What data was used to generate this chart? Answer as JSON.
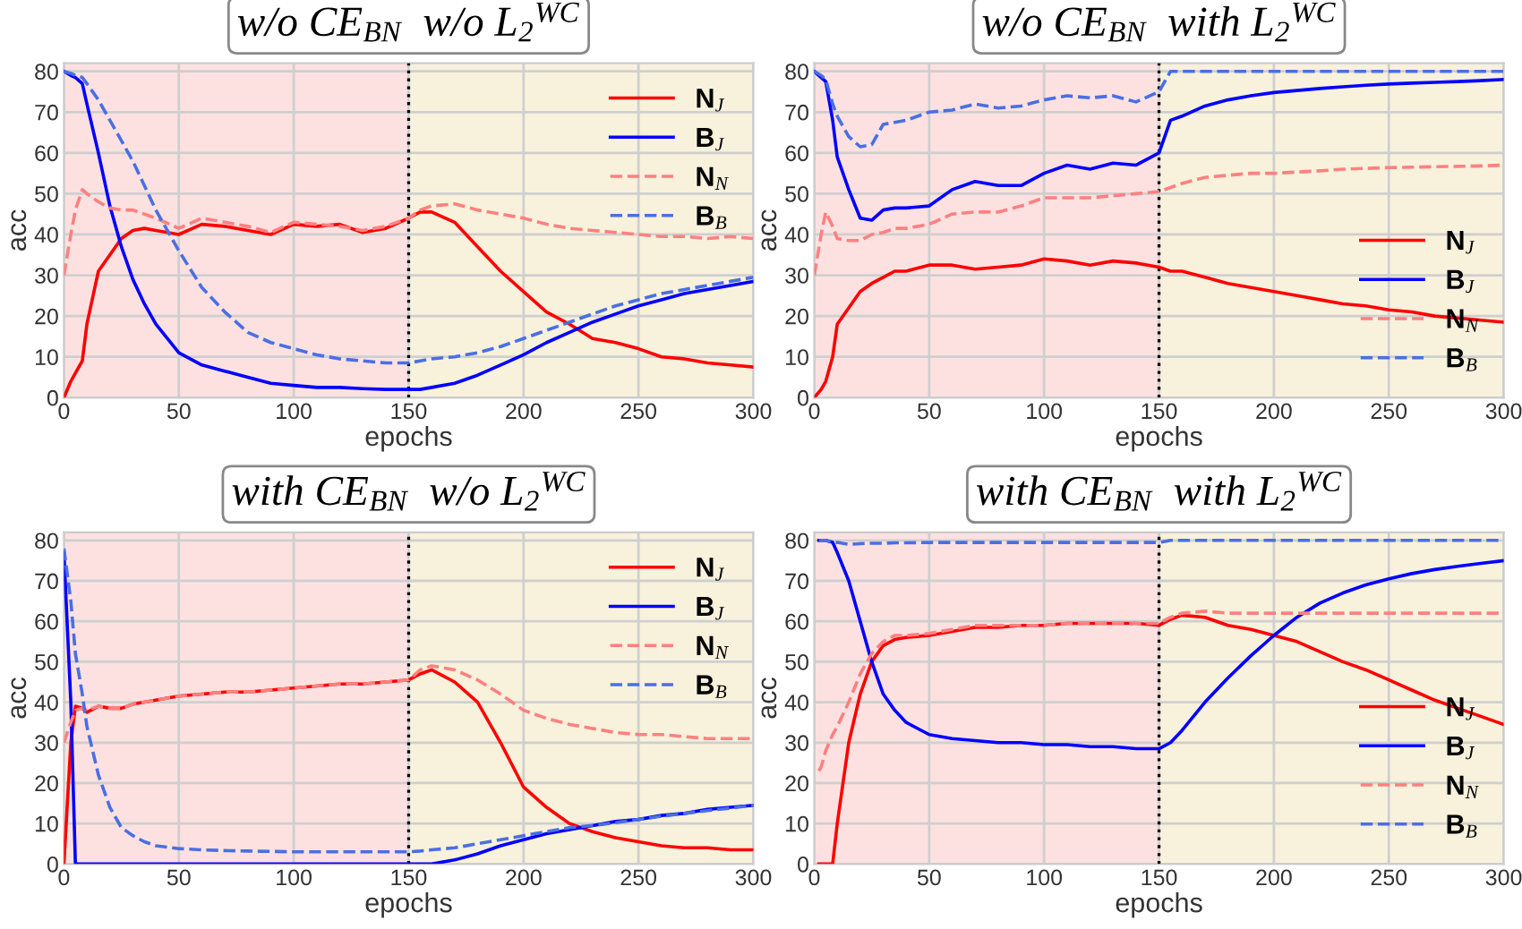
{
  "chart_data": [
    {
      "type": "line",
      "title": "w/o CE$_{BN}$  w/o L$_{2}$$^{WC}$",
      "xlabel": "epochs",
      "ylabel": "acc",
      "xlim": [
        0,
        300
      ],
      "ylim": [
        0,
        82
      ],
      "xticks": [
        0,
        50,
        100,
        150,
        200,
        250,
        300
      ],
      "yticks": [
        0,
        10,
        20,
        30,
        40,
        50,
        60,
        70,
        80
      ],
      "grid": true,
      "legend": "top right",
      "x": [
        0,
        3,
        5,
        8,
        10,
        15,
        20,
        25,
        30,
        35,
        40,
        50,
        60,
        70,
        80,
        90,
        100,
        110,
        120,
        130,
        140,
        150,
        155,
        160,
        170,
        180,
        190,
        200,
        210,
        220,
        230,
        240,
        250,
        260,
        270,
        280,
        290,
        300
      ],
      "bands": [
        {
          "axis": "x",
          "from": 0,
          "to": 150,
          "color": "#fde1e1"
        },
        {
          "axis": "x",
          "from": 150,
          "to": 300,
          "color": "#f8f1dc"
        }
      ],
      "ref_lines": [
        {
          "axis": "x",
          "value": 150,
          "color": "#000000",
          "line_style": "dotted"
        }
      ],
      "series": [
        {
          "name": "N$_{J}$",
          "color": "#ff0000",
          "line_style": "solid",
          "values": [
            0,
            4,
            6,
            9,
            18,
            31,
            35,
            39,
            41,
            41.5,
            41,
            40,
            42.5,
            42,
            41,
            40,
            42.5,
            42,
            42.5,
            40.5,
            41.5,
            44,
            45.5,
            45.5,
            43,
            37,
            31,
            26,
            21,
            18,
            14.5,
            13.5,
            12,
            10,
            9.5,
            8.5,
            8,
            7.5
          ]
        },
        {
          "name": "B$_{J}$",
          "color": "#0000ff",
          "line_style": "solid",
          "values": [
            80,
            79,
            78.5,
            77,
            72,
            60,
            47,
            37,
            29,
            23,
            18,
            11,
            8,
            6.5,
            5,
            3.5,
            3,
            2.5,
            2.5,
            2.2,
            2,
            2,
            2,
            2.5,
            3.5,
            5.5,
            8,
            10.5,
            13.5,
            16,
            18.5,
            20.5,
            22.5,
            24,
            25.5,
            26.5,
            27.5,
            28.5
          ]
        },
        {
          "name": "N$_{N}$",
          "color": "#ff8080",
          "line_style": "dashed",
          "values": [
            30,
            40,
            46,
            51,
            50,
            48,
            46.5,
            46,
            46,
            45,
            44,
            41.5,
            44,
            43,
            42,
            40.5,
            43,
            42.5,
            42,
            41,
            42,
            44,
            46,
            47,
            47.5,
            46,
            45,
            44,
            42.5,
            41.5,
            41,
            40.5,
            40,
            39.5,
            39.5,
            39,
            39.5,
            39
          ]
        },
        {
          "name": "B$_{B}$",
          "color": "#4a6fe3",
          "line_style": "dashed",
          "values": [
            80,
            79.5,
            79,
            78.5,
            77,
            73,
            68,
            63,
            58,
            52,
            46,
            36,
            27,
            21,
            16,
            13.5,
            12,
            10.5,
            9.5,
            9,
            8.5,
            8.5,
            9,
            9.5,
            10,
            11,
            12.5,
            14.5,
            16.5,
            18.5,
            20.5,
            22.5,
            24,
            25.5,
            26.5,
            27.5,
            28.5,
            29.5
          ]
        }
      ]
    },
    {
      "type": "line",
      "title": "w/o CE$_{BN}$  with L$_{2}$$^{WC}$",
      "xlabel": "epochs",
      "ylabel": "acc",
      "xlim": [
        0,
        300
      ],
      "ylim": [
        0,
        82
      ],
      "xticks": [
        0,
        50,
        100,
        150,
        200,
        250,
        300
      ],
      "yticks": [
        0,
        10,
        20,
        30,
        40,
        50,
        60,
        70,
        80
      ],
      "grid": true,
      "legend": "bottom right",
      "x": [
        0,
        3,
        5,
        8,
        10,
        15,
        20,
        25,
        30,
        35,
        40,
        50,
        60,
        70,
        80,
        90,
        100,
        110,
        120,
        130,
        140,
        150,
        155,
        160,
        170,
        180,
        190,
        200,
        210,
        220,
        230,
        240,
        250,
        260,
        270,
        280,
        290,
        300
      ],
      "bands": [
        {
          "axis": "x",
          "from": 0,
          "to": 150,
          "color": "#fde1e1"
        },
        {
          "axis": "x",
          "from": 150,
          "to": 300,
          "color": "#f8f1dc"
        }
      ],
      "ref_lines": [
        {
          "axis": "x",
          "value": 150,
          "color": "#000000",
          "line_style": "dotted"
        }
      ],
      "series": [
        {
          "name": "N$_{J}$",
          "color": "#ff0000",
          "line_style": "solid",
          "values": [
            0,
            2,
            4,
            10,
            18,
            22,
            26,
            28,
            29.5,
            31,
            31,
            32.5,
            32.5,
            31.5,
            32,
            32.5,
            34,
            33.5,
            32.5,
            33.5,
            33,
            32,
            31,
            31,
            29.5,
            28,
            27,
            26,
            25,
            24,
            23,
            22.5,
            21.5,
            21,
            20,
            19.5,
            19,
            18.5
          ]
        },
        {
          "name": "B$_{J}$",
          "color": "#0000ff",
          "line_style": "solid",
          "values": [
            80,
            78.5,
            77.5,
            68,
            59,
            51,
            44,
            43.5,
            46,
            46.5,
            46.5,
            47,
            51,
            53,
            52,
            52,
            55,
            57,
            56,
            57.5,
            57,
            60,
            68,
            69,
            71.5,
            73,
            74,
            74.8,
            75.3,
            75.8,
            76.2,
            76.6,
            76.9,
            77.1,
            77.3,
            77.5,
            77.7,
            78
          ]
        },
        {
          "name": "N$_{N}$",
          "color": "#ff8080",
          "line_style": "dashed",
          "values": [
            30,
            40,
            45.5,
            42,
            39,
            38.5,
            38.5,
            40,
            40.5,
            41.5,
            41.5,
            42.5,
            45,
            45.5,
            45.5,
            47,
            49,
            49,
            49,
            49.5,
            50,
            50.5,
            51.5,
            52.5,
            54,
            54.5,
            55,
            55,
            55.3,
            55.6,
            56,
            56.2,
            56.4,
            56.5,
            56.6,
            56.7,
            56.8,
            57
          ]
        },
        {
          "name": "B$_{B}$",
          "color": "#4a6fe3",
          "line_style": "dashed",
          "values": [
            80,
            79,
            78,
            72,
            69,
            64,
            61.5,
            62,
            67,
            67.5,
            68,
            70,
            70.5,
            72,
            71,
            71.5,
            73,
            74,
            73.5,
            74,
            72.5,
            75,
            80,
            80,
            80,
            80,
            80,
            80,
            80,
            80,
            80,
            80,
            80,
            80,
            80,
            80,
            80,
            80
          ]
        }
      ]
    },
    {
      "type": "line",
      "title": "with CE$_{BN}$  w/o L$_{2}$$^{WC}$",
      "xlabel": "epochs",
      "ylabel": "acc",
      "xlim": [
        0,
        300
      ],
      "ylim": [
        0,
        82
      ],
      "xticks": [
        0,
        50,
        100,
        150,
        200,
        250,
        300
      ],
      "yticks": [
        0,
        10,
        20,
        30,
        40,
        50,
        60,
        70,
        80
      ],
      "grid": true,
      "legend": "top right",
      "x": [
        0,
        3,
        5,
        8,
        10,
        15,
        20,
        25,
        30,
        35,
        40,
        50,
        60,
        70,
        80,
        90,
        100,
        110,
        120,
        130,
        140,
        150,
        155,
        160,
        170,
        180,
        190,
        200,
        210,
        220,
        230,
        240,
        250,
        260,
        270,
        280,
        290,
        300
      ],
      "bands": [
        {
          "axis": "x",
          "from": 0,
          "to": 150,
          "color": "#fde1e1"
        },
        {
          "axis": "x",
          "from": 150,
          "to": 300,
          "color": "#f8f1dc"
        }
      ],
      "ref_lines": [
        {
          "axis": "x",
          "value": 150,
          "color": "#000000",
          "line_style": "dotted"
        }
      ],
      "series": [
        {
          "name": "N$_{J}$",
          "color": "#ff0000",
          "line_style": "solid",
          "values": [
            0,
            30,
            39,
            38.5,
            37.5,
            39,
            38.5,
            38.5,
            39.5,
            40,
            40.5,
            41.5,
            42,
            42.5,
            42.5,
            43,
            43.5,
            44,
            44.5,
            44.5,
            45,
            45.5,
            47,
            48,
            45,
            40,
            30,
            19,
            14,
            10,
            8,
            6.5,
            5.5,
            4.5,
            4,
            4,
            3.5,
            3.5
          ]
        },
        {
          "name": "B$_{J}$",
          "color": "#0000ff",
          "line_style": "solid",
          "values": [
            77,
            40,
            0,
            0,
            0,
            0,
            0,
            0,
            0,
            0,
            0,
            0,
            0,
            0,
            0,
            0,
            0,
            0,
            0,
            0,
            0,
            0,
            0,
            0,
            1,
            2.5,
            4.5,
            6,
            7.5,
            8.5,
            9.5,
            10.5,
            11,
            12,
            12.5,
            13.5,
            14,
            14.5
          ]
        },
        {
          "name": "N$_{N}$",
          "color": "#ff8080",
          "line_style": "dashed",
          "values": [
            30,
            35,
            38,
            38.5,
            38,
            39,
            38.5,
            38.5,
            39.5,
            40,
            40.5,
            41.5,
            42,
            42.5,
            42.5,
            43,
            43.5,
            44,
            44.5,
            44.5,
            45,
            45.5,
            48,
            49,
            48,
            45.5,
            42,
            38,
            36,
            34.5,
            33.5,
            32.5,
            32,
            32,
            31.5,
            31,
            31,
            31
          ]
        },
        {
          "name": "B$_{B}$",
          "color": "#4a6fe3",
          "line_style": "dashed",
          "values": [
            78,
            65,
            52,
            42,
            34,
            22,
            14,
            9,
            7,
            5.5,
            4.5,
            3.8,
            3.5,
            3.3,
            3.2,
            3.1,
            3,
            3,
            3,
            3,
            3,
            3,
            3.2,
            3.5,
            4,
            5,
            6,
            7,
            8,
            9,
            9.5,
            10.2,
            11,
            11.8,
            12.5,
            13.2,
            13.8,
            14.5
          ]
        }
      ]
    },
    {
      "type": "line",
      "title": "with CE$_{BN}$  with L$_{2}$$^{WC}$",
      "xlabel": "epochs",
      "ylabel": "acc",
      "xlim": [
        0,
        300
      ],
      "ylim": [
        0,
        82
      ],
      "xticks": [
        0,
        50,
        100,
        150,
        200,
        250,
        300
      ],
      "yticks": [
        0,
        10,
        20,
        30,
        40,
        50,
        60,
        70,
        80
      ],
      "grid": true,
      "legend": "bottom right",
      "x": [
        2,
        3,
        5,
        8,
        10,
        15,
        20,
        25,
        30,
        35,
        40,
        50,
        60,
        70,
        80,
        90,
        100,
        110,
        120,
        130,
        140,
        150,
        155,
        160,
        170,
        180,
        190,
        200,
        210,
        220,
        230,
        240,
        250,
        260,
        270,
        280,
        290,
        300
      ],
      "bands": [
        {
          "axis": "x",
          "from": 0,
          "to": 150,
          "color": "#fde1e1"
        },
        {
          "axis": "x",
          "from": 150,
          "to": 300,
          "color": "#f8f1dc"
        }
      ],
      "ref_lines": [
        {
          "axis": "x",
          "value": 150,
          "color": "#000000",
          "line_style": "dotted"
        }
      ],
      "series": [
        {
          "name": "N$_{J}$",
          "color": "#ff0000",
          "line_style": "solid",
          "values": [
            0,
            0,
            0,
            0,
            10,
            30,
            42,
            50,
            54,
            55.5,
            56,
            56.5,
            57.5,
            58.5,
            58.5,
            59,
            59,
            59.5,
            59.5,
            59.5,
            59.5,
            59,
            60.5,
            61.5,
            61,
            59,
            58,
            56.5,
            55,
            52.5,
            50,
            48,
            45.5,
            43,
            40.5,
            38.5,
            36.5,
            34.5
          ]
        },
        {
          "name": "B$_{J}$",
          "color": "#0000ff",
          "line_style": "solid",
          "values": [
            80,
            80,
            80,
            79.5,
            77,
            70,
            60,
            50,
            42,
            38,
            35,
            32,
            31,
            30.5,
            30,
            30,
            29.5,
            29.5,
            29,
            29,
            28.5,
            28.5,
            30,
            33,
            40,
            46,
            51.5,
            56.5,
            61,
            64.5,
            67,
            69,
            70.5,
            71.8,
            72.8,
            73.6,
            74.3,
            75
          ]
        },
        {
          "name": "N$_{N}$",
          "color": "#ff8080",
          "line_style": "dashed",
          "values": [
            23,
            24,
            28,
            32,
            34,
            40,
            47,
            52,
            55,
            56.5,
            56.5,
            57,
            58,
            59,
            59,
            59,
            59,
            59.5,
            59.5,
            59.5,
            59.5,
            59.5,
            61,
            62,
            62.5,
            62,
            62,
            62,
            62,
            62,
            62,
            62,
            62,
            62,
            62,
            62,
            62,
            62
          ]
        },
        {
          "name": "B$_{B}$",
          "color": "#4a6fe3",
          "line_style": "dashed",
          "values": [
            80,
            80,
            80,
            79.5,
            79.5,
            79,
            79.2,
            79.3,
            79.3,
            79.4,
            79.4,
            79.5,
            79.5,
            79.5,
            79.5,
            79.5,
            79.5,
            79.5,
            79.5,
            79.5,
            79.5,
            79.5,
            80,
            80,
            80,
            80,
            80,
            80,
            80,
            80,
            80,
            80,
            80,
            80,
            80,
            80,
            80,
            80
          ]
        }
      ]
    }
  ]
}
